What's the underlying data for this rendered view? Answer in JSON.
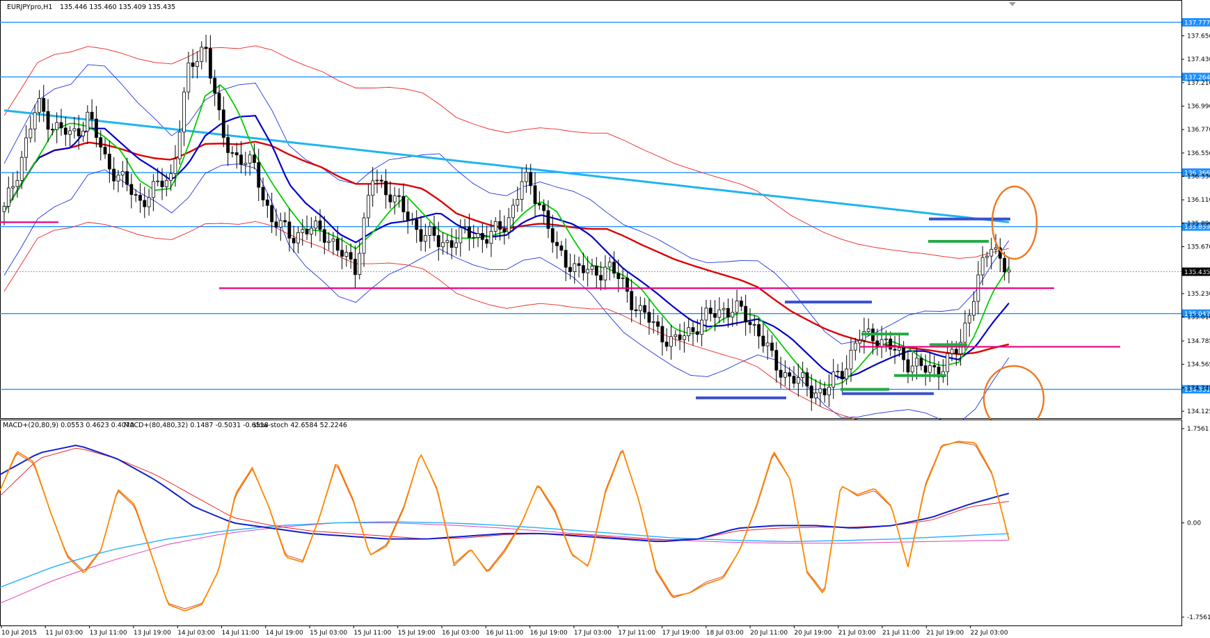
{
  "window": {
    "title": "EURJPYpro,H1",
    "ohlc": "135.446 135.460 135.409 135.435"
  },
  "indicator_header": {
    "macd_fast": "MACD+(20,80,9) 0.0553 0.4623 0.4070",
    "macd_slow": "MACD+(80,480,32) 0.1487 -0.5031 -0.6518",
    "stoch": "slow-stoch 42.6584 52.2246"
  },
  "colors": {
    "bull_candle": "#ffffff",
    "bear_candle": "#000000",
    "hline": "#1e90ff",
    "pink_line": "#e6007e",
    "price_label_bg": "#1e90ff",
    "ma_fast": "#00cc00",
    "ma_mid": "#0000cc",
    "ma_red": "#dd0000",
    "ma_long": "#1fb4f0",
    "bollinger_blue": "#2233dd",
    "bollinger_red": "#ee2222",
    "stoch": "#ff8800",
    "circle": "#f07820"
  },
  "chart_data": [
    {
      "type": "candlestick",
      "symbol": "EURJPYpro",
      "timeframe": "H1",
      "ylim": [
        134.06,
        137.98
      ],
      "y_ticks": [
        "137.650",
        "137.430",
        "137.210",
        "136.990",
        "136.770",
        "136.550",
        "136.330",
        "136.110",
        "135.890",
        "135.670",
        "135.450",
        "135.230",
        "135.010",
        "134.785",
        "134.565",
        "134.345",
        "134.125"
      ],
      "x_ticks": [
        "10 Jul 2015",
        "11 Jul 03:00",
        "13 Jul 11:00",
        "13 Jul 19:00",
        "14 Jul 03:00",
        "14 Jul 11:00",
        "14 Jul 19:00",
        "15 Jul 03:00",
        "15 Jul 11:00",
        "15 Jul 19:00",
        "16 Jul 03:00",
        "16 Jul 11:00",
        "16 Jul 19:00",
        "17 Jul 03:00",
        "17 Jul 11:00",
        "17 Jul 19:00",
        "18 Jul 03:00",
        "20 Jul 11:00",
        "20 Jul 19:00",
        "21 Jul 03:00",
        "21 Jul 11:00",
        "21 Jul 19:00",
        "22 Jul 03:00"
      ],
      "close_path": [
        136.0,
        136.5,
        137.0,
        136.8,
        136.7,
        136.9,
        136.5,
        136.3,
        136.1,
        136.2,
        136.35,
        137.3,
        137.6,
        136.7,
        136.5,
        136.4,
        135.9,
        135.8,
        135.8,
        135.85,
        135.6,
        135.5,
        136.3,
        136.2,
        135.95,
        135.8,
        135.7,
        135.75,
        135.8,
        135.75,
        135.9,
        136.3,
        136.1,
        135.6,
        135.5,
        135.4,
        135.5,
        135.3,
        135.05,
        134.9,
        134.75,
        134.9,
        135.0,
        135.1,
        135.05,
        134.9,
        134.55,
        134.45,
        134.35,
        134.3,
        134.5,
        134.8,
        134.85,
        134.7,
        134.6,
        134.5,
        134.55,
        134.7,
        135.3,
        135.7,
        135.45
      ],
      "horizontal_levels": [
        {
          "label": "137.777",
          "value": 137.777
        },
        {
          "label": "137.264",
          "value": 137.264
        },
        {
          "label": "136.366",
          "value": 136.366
        },
        {
          "label": "135.859",
          "value": 135.859
        },
        {
          "label": "135.042",
          "value": 135.042
        },
        {
          "label": "134.331",
          "value": 134.331
        }
      ],
      "current_price": {
        "label": "135.435",
        "value": 135.435
      },
      "pink_support": 135.28,
      "pink_level_left": 135.9,
      "pink_level_right": 134.73,
      "blue_segments": [
        135.15,
        134.25,
        134.29,
        135.93
      ],
      "green_segments": [
        134.33,
        134.46,
        134.85,
        134.75,
        135.72
      ]
    },
    {
      "type": "line",
      "name": "MACD / stochastic",
      "ylim": [
        -1.7561,
        1.7561
      ],
      "y_ticks": [
        "1.7561",
        "0.00",
        "-1.7561"
      ],
      "stoch_path": [
        0.6,
        1.3,
        1.1,
        0.2,
        -0.6,
        -0.9,
        -0.5,
        0.6,
        0.3,
        -0.6,
        -1.5,
        -1.6,
        -1.5,
        -0.9,
        0.5,
        1.0,
        0.3,
        -0.6,
        -0.7,
        0.1,
        1.1,
        0.4,
        -0.6,
        -0.4,
        0.3,
        1.3,
        0.6,
        -0.8,
        -0.5,
        -0.9,
        -0.5,
        0.0,
        0.7,
        0.2,
        -0.6,
        -0.8,
        0.6,
        1.4,
        0.4,
        -0.9,
        -1.4,
        -1.3,
        -1.1,
        -1.0,
        -0.5,
        0.3,
        1.3,
        0.8,
        -0.9,
        -1.3,
        0.7,
        0.5,
        0.6,
        0.3,
        -0.8,
        0.7,
        1.45,
        1.5,
        1.45,
        0.9,
        -0.3
      ],
      "macd_blue_path": [
        0.9,
        1.3,
        1.45,
        1.2,
        0.8,
        0.3,
        0.0,
        -0.1,
        -0.2,
        -0.25,
        -0.3,
        -0.3,
        -0.25,
        -0.2,
        -0.2,
        -0.25,
        -0.3,
        -0.35,
        -0.3,
        -0.1,
        -0.05,
        -0.05,
        -0.1,
        -0.05,
        0.1,
        0.35,
        0.55
      ],
      "macd_red_path": [
        0.5,
        1.2,
        1.4,
        1.2,
        0.9,
        0.5,
        0.1,
        -0.05,
        -0.15,
        -0.2,
        -0.25,
        -0.3,
        -0.28,
        -0.22,
        -0.2,
        -0.22,
        -0.28,
        -0.32,
        -0.3,
        -0.15,
        -0.1,
        -0.08,
        -0.08,
        -0.05,
        0.05,
        0.3,
        0.4
      ],
      "macd_slow_cyan_path": [
        -1.2,
        -0.8,
        -0.5,
        -0.3,
        -0.15,
        -0.05,
        0.0,
        0.02,
        0.0,
        -0.05,
        -0.12,
        -0.2,
        -0.28,
        -0.32,
        -0.35,
        -0.33,
        -0.3,
        -0.25,
        -0.2
      ],
      "macd_slow_pink_path": [
        -1.5,
        -1.05,
        -0.7,
        -0.4,
        -0.2,
        -0.08,
        0.0,
        0.0,
        -0.04,
        -0.1,
        -0.18,
        -0.25,
        -0.32,
        -0.36,
        -0.38,
        -0.38,
        -0.36,
        -0.34,
        -0.32
      ]
    }
  ]
}
